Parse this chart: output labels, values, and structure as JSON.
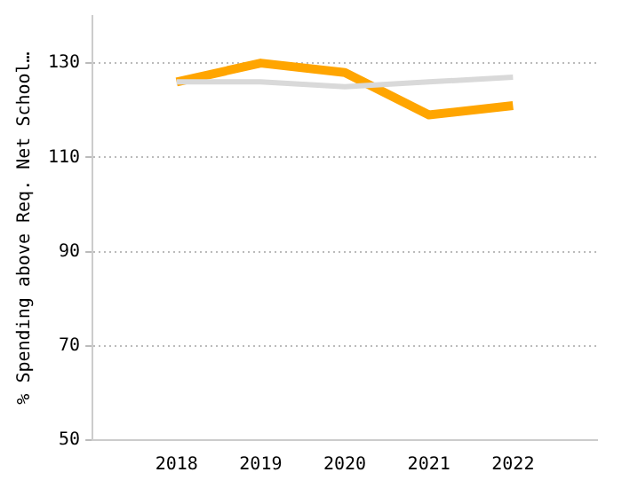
{
  "chart_data": {
    "type": "line",
    "ylabel": "% Spending above Req. Net School…",
    "categories": [
      null,
      "2018",
      "2019",
      "2020",
      "2021",
      "2022",
      null
    ],
    "series": [
      {
        "color": "#d9d9d9",
        "values": [
          null,
          126,
          126,
          125,
          126,
          127,
          null
        ]
      },
      {
        "color": "#ffa500",
        "values": [
          null,
          126,
          130,
          128,
          119,
          121,
          null
        ]
      }
    ],
    "ylim": [
      50,
      140
    ],
    "yticks": [
      50,
      70,
      90,
      110,
      130
    ],
    "grid": "y",
    "legend": false,
    "marker": "none"
  }
}
